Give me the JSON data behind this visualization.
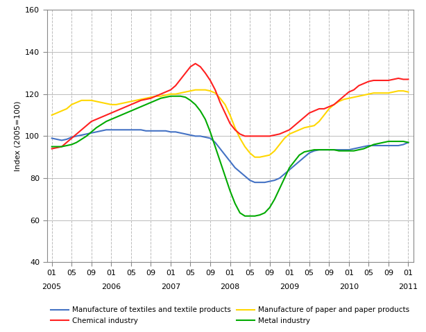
{
  "ylabel": "Index (2005=100)",
  "ylim": [
    40,
    160
  ],
  "yticks": [
    40,
    60,
    80,
    100,
    120,
    140,
    160
  ],
  "colors": {
    "textiles": "#4472C4",
    "paper": "#FFD700",
    "chemical": "#FF2020",
    "metal": "#00AA00"
  },
  "legend": [
    "Manufacture of textiles and textile products",
    "Manufacture of paper and paper products",
    "Chemical industry",
    "Metal industry"
  ],
  "textiles": [
    99,
    98.5,
    98,
    98.5,
    99.5,
    100,
    100.5,
    101,
    101.5,
    102,
    102.5,
    103,
    103,
    103,
    103,
    103,
    103,
    103,
    103,
    102.5,
    102.5,
    102.5,
    102.5,
    102.5,
    102,
    102,
    101.5,
    101,
    100.5,
    100,
    100,
    99.5,
    99,
    97,
    94,
    91,
    88,
    85,
    83,
    81,
    79,
    78,
    78,
    78,
    78.5,
    79,
    80,
    82,
    84,
    86,
    88,
    90,
    92,
    93,
    93.5,
    93.5,
    93.5,
    93.5,
    93.5,
    93.5,
    93.5,
    94,
    94.5,
    95,
    95.5,
    95.5,
    95.5,
    95.5,
    95.5,
    95.5,
    95.5,
    96,
    97
  ],
  "paper": [
    110,
    111,
    112,
    113,
    115,
    116,
    117,
    117,
    117,
    116.5,
    116,
    115.5,
    115,
    115,
    115.5,
    116,
    116.5,
    117,
    117.5,
    118,
    118.5,
    119,
    119,
    119.5,
    120,
    120,
    120.5,
    121,
    121.5,
    122,
    122,
    122,
    121.5,
    120.5,
    118,
    115,
    110,
    104,
    99,
    95,
    92,
    90,
    90,
    90.5,
    91,
    93,
    96,
    99,
    101,
    102,
    103,
    104,
    104.5,
    105,
    107,
    110,
    113,
    115,
    116.5,
    117.5,
    118,
    118.5,
    119,
    119.5,
    120,
    120.5,
    120.5,
    120.5,
    120.5,
    121,
    121.5,
    121.5,
    121
  ],
  "chemical": [
    94,
    94.5,
    95,
    97,
    99,
    101,
    103,
    105,
    107,
    108,
    109,
    110,
    111,
    112,
    113,
    114,
    115,
    116,
    117,
    117.5,
    118,
    119,
    120,
    121,
    122,
    124,
    127,
    130,
    133,
    134.5,
    133,
    130,
    126.5,
    122,
    116,
    111,
    106,
    103,
    101,
    100,
    100,
    100,
    100,
    100,
    100,
    100.5,
    101,
    102,
    103,
    105,
    107,
    109,
    111,
    112,
    113,
    113,
    114,
    115,
    117,
    119,
    121,
    122,
    124,
    125,
    126,
    126.5,
    126.5,
    126.5,
    126.5,
    127,
    127.5,
    127,
    127
  ],
  "metal": [
    95,
    95,
    95,
    95.5,
    96,
    97,
    98.5,
    100,
    102,
    104,
    105.5,
    107,
    108,
    109,
    110,
    111,
    112,
    113,
    114,
    115,
    116,
    117,
    118,
    118.5,
    119,
    119,
    119,
    118.5,
    117,
    115,
    112,
    108,
    102,
    95,
    88,
    81,
    74,
    68,
    63.5,
    62,
    62,
    62,
    62.5,
    63.5,
    66,
    70,
    75,
    80,
    85,
    88,
    91,
    92.5,
    93,
    93.5,
    93.5,
    93.5,
    93.5,
    93.5,
    93,
    93,
    93,
    93,
    93.5,
    94,
    95,
    96,
    96.5,
    97,
    97.5,
    97.5,
    97.5,
    97.5,
    97
  ],
  "x_year_positions": [
    0,
    12,
    24,
    36,
    48,
    60,
    72
  ],
  "x_year_labels": [
    "2005",
    "2006",
    "2007",
    "2008",
    "2009",
    "2010",
    "2011"
  ],
  "x_tick_positions": [
    0,
    4,
    8,
    12,
    16,
    20,
    24,
    28,
    32,
    36,
    40,
    44,
    48,
    52,
    56,
    60,
    64,
    68,
    72
  ],
  "x_tick_labels": [
    "01",
    "05",
    "09",
    "01",
    "05",
    "09",
    "01",
    "05",
    "09",
    "01",
    "05",
    "09",
    "01",
    "05",
    "09",
    "01",
    "05",
    "09",
    "01"
  ]
}
